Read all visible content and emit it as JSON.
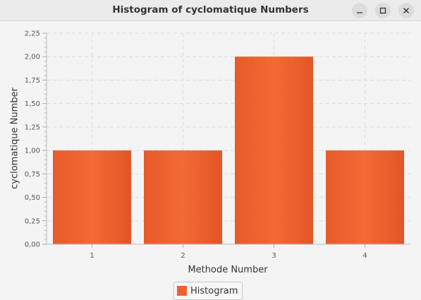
{
  "window": {
    "title": "Histogram of cyclomatique Numbers"
  },
  "chart_data": {
    "type": "bar",
    "categories": [
      "1",
      "2",
      "3",
      "4"
    ],
    "values": [
      1,
      1,
      2,
      1
    ],
    "xlabel": "Methode Number",
    "ylabel": "cyclomatique Number",
    "ylim": [
      0,
      2.25
    ],
    "yticks": [
      "0,00",
      "0,25",
      "0,50",
      "0,75",
      "1,00",
      "1,25",
      "1,50",
      "1,75",
      "2,00",
      "2,25"
    ],
    "grid": true,
    "legend": {
      "position": "bottom",
      "entries": [
        "Histogram"
      ]
    },
    "bar_color": "#f0612f"
  }
}
